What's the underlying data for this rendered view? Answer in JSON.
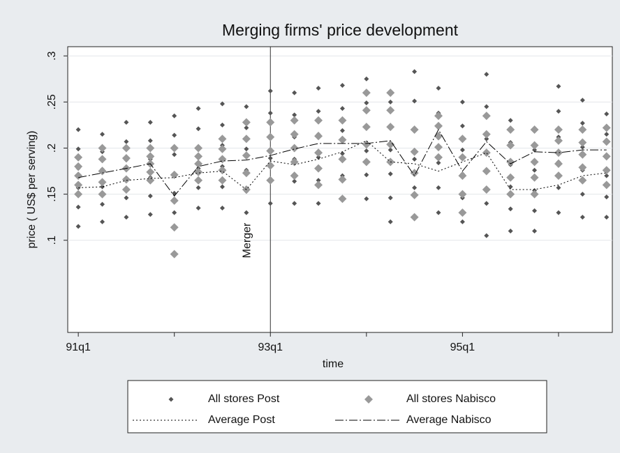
{
  "chart_data": {
    "type": "scatter",
    "title": "Merging firms' price development",
    "xlabel": "time",
    "ylabel": "price ( US$ per serving)",
    "x": [
      124,
      125,
      126,
      127,
      128,
      129,
      130,
      131,
      132,
      133,
      134,
      135,
      136,
      137,
      138,
      139,
      140,
      141,
      142,
      143,
      144,
      145,
      146
    ],
    "xlim": [
      123.56,
      146.24
    ],
    "ylim": [
      0,
      0.31
    ],
    "xticks": [
      {
        "value": 124,
        "label": "91q1"
      },
      {
        "value": 132,
        "label": "93q1"
      },
      {
        "value": 140,
        "label": "95q1"
      }
    ],
    "xticks_minor": [
      128,
      136,
      144
    ],
    "yticks": [
      {
        "value": 0.1,
        "label": ".1"
      },
      {
        "value": 0.15,
        "label": ".15"
      },
      {
        "value": 0.2,
        "label": ".2"
      },
      {
        "value": 0.25,
        "label": ".25"
      },
      {
        "value": 0.3,
        "label": ".3"
      }
    ],
    "grid": true,
    "legend": "bottom",
    "annotations": [
      {
        "text": "Merger",
        "x": 132
      }
    ],
    "series": [
      {
        "name": "All stores Post",
        "type": "scatter",
        "marker": "diamond",
        "color": "#555555",
        "values": [
          [
            0.115,
            0.136,
            0.157,
            0.178,
            0.199,
            0.22
          ],
          [
            0.12,
            0.139,
            0.158,
            0.177,
            0.196,
            0.215
          ],
          [
            0.125,
            0.146,
            0.166,
            0.187,
            0.207,
            0.228
          ],
          [
            0.128,
            0.148,
            0.168,
            0.188,
            0.208,
            0.228
          ],
          [
            0.13,
            0.151,
            0.172,
            0.193,
            0.214,
            0.235
          ],
          [
            0.135,
            0.157,
            0.178,
            0.2,
            0.221,
            0.243
          ],
          [
            0.135,
            0.158,
            0.18,
            0.203,
            0.225,
            0.248
          ],
          [
            0.13,
            0.153,
            0.176,
            0.199,
            0.222,
            0.245
          ],
          [
            0.14,
            0.164,
            0.189,
            0.213,
            0.238,
            0.262
          ],
          [
            0.14,
            0.164,
            0.188,
            0.212,
            0.236,
            0.26
          ],
          [
            0.14,
            0.165,
            0.19,
            0.215,
            0.24,
            0.265
          ],
          [
            0.145,
            0.17,
            0.194,
            0.219,
            0.243,
            0.268
          ],
          [
            0.145,
            0.171,
            0.197,
            0.223,
            0.249,
            0.275
          ],
          [
            0.12,
            0.146,
            0.172,
            0.198,
            0.224,
            0.25
          ],
          [
            0.125,
            0.157,
            0.188,
            0.22,
            0.251,
            0.283
          ],
          [
            0.13,
            0.157,
            0.184,
            0.211,
            0.238,
            0.265
          ],
          [
            0.12,
            0.146,
            0.172,
            0.198,
            0.224,
            0.25
          ],
          [
            0.105,
            0.14,
            0.175,
            0.21,
            0.245,
            0.28
          ],
          [
            0.11,
            0.134,
            0.158,
            0.182,
            0.206,
            0.23
          ],
          [
            0.11,
            0.132,
            0.154,
            0.176,
            0.198,
            0.22
          ],
          [
            0.13,
            0.157,
            0.185,
            0.212,
            0.24,
            0.267
          ],
          [
            0.125,
            0.15,
            0.176,
            0.201,
            0.227,
            0.252
          ],
          [
            0.125,
            0.147,
            0.17,
            0.192,
            0.215,
            0.237
          ]
        ]
      },
      {
        "name": "All stores Nabisco",
        "type": "scatter",
        "marker": "diamond",
        "color": "#999999",
        "values": [
          [
            0.15,
            0.16,
            0.17,
            0.18,
            0.19
          ],
          [
            0.15,
            0.163,
            0.175,
            0.188,
            0.2
          ],
          [
            0.155,
            0.166,
            0.178,
            0.189,
            0.2
          ],
          [
            0.165,
            0.174,
            0.183,
            0.191,
            0.2
          ],
          [
            0.085,
            0.114,
            0.143,
            0.171,
            0.2
          ],
          [
            0.165,
            0.174,
            0.183,
            0.191,
            0.2
          ],
          [
            0.165,
            0.176,
            0.188,
            0.199,
            0.21
          ],
          [
            0.155,
            0.173,
            0.192,
            0.21,
            0.228
          ],
          [
            0.165,
            0.181,
            0.197,
            0.212,
            0.228
          ],
          [
            0.17,
            0.185,
            0.2,
            0.215,
            0.23
          ],
          [
            0.16,
            0.178,
            0.195,
            0.213,
            0.23
          ],
          [
            0.145,
            0.166,
            0.188,
            0.209,
            0.23
          ],
          [
            0.185,
            0.204,
            0.223,
            0.241,
            0.26
          ],
          [
            0.185,
            0.204,
            0.223,
            0.241,
            0.26
          ],
          [
            0.125,
            0.149,
            0.173,
            0.196,
            0.22
          ],
          [
            0.19,
            0.201,
            0.213,
            0.224,
            0.235
          ],
          [
            0.13,
            0.15,
            0.17,
            0.19,
            0.21
          ],
          [
            0.155,
            0.175,
            0.195,
            0.215,
            0.235
          ],
          [
            0.15,
            0.168,
            0.185,
            0.203,
            0.22
          ],
          [
            0.15,
            0.168,
            0.185,
            0.203,
            0.22
          ],
          [
            0.17,
            0.183,
            0.195,
            0.208,
            0.22
          ],
          [
            0.165,
            0.179,
            0.193,
            0.206,
            0.22
          ],
          [
            0.16,
            0.176,
            0.191,
            0.207,
            0.222
          ]
        ]
      },
      {
        "name": "Average Post",
        "type": "line",
        "dash": "dot",
        "color": "#000000",
        "values": [
          0.157,
          0.158,
          0.165,
          0.167,
          0.168,
          0.173,
          0.175,
          0.155,
          0.186,
          0.182,
          0.188,
          0.196,
          0.208,
          0.185,
          0.183,
          0.175,
          0.185,
          0.195,
          0.155,
          0.155,
          0.16,
          0.17,
          0.173
        ]
      },
      {
        "name": "Average Nabisco",
        "type": "line",
        "dash": "dashdot",
        "color": "#000000",
        "values": [
          0.168,
          0.173,
          0.178,
          0.183,
          0.148,
          0.18,
          0.186,
          0.187,
          0.192,
          0.199,
          0.205,
          0.205,
          0.205,
          0.208,
          0.17,
          0.22,
          0.175,
          0.207,
          0.183,
          0.196,
          0.195,
          0.198,
          0.198
        ]
      }
    ]
  }
}
